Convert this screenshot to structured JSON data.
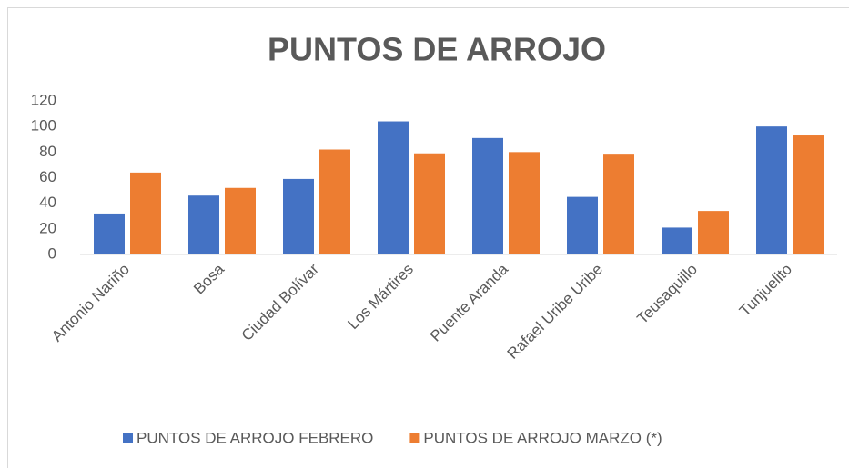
{
  "chart_data": {
    "type": "bar",
    "title": "PUNTOS DE ARROJO",
    "categories": [
      "Antonio Nariño",
      "Bosa",
      "Ciudad Bolívar",
      "Los Mártires",
      "Puente Aranda",
      "Rafael Uribe Uribe",
      "Teusaquillo",
      "Tunjuelito"
    ],
    "series": [
      {
        "name": "PUNTOS DE ARROJO FEBRERO",
        "color": "#4472c4",
        "values": [
          32,
          46,
          59,
          104,
          91,
          45,
          21,
          100
        ]
      },
      {
        "name": "PUNTOS DE ARROJO MARZO (*)",
        "color": "#ed7d31",
        "values": [
          64,
          52,
          82,
          79,
          80,
          78,
          34,
          93
        ]
      }
    ],
    "ylim": [
      0,
      120
    ],
    "yticks": [
      0,
      20,
      40,
      60,
      80,
      100,
      120
    ],
    "grid": false,
    "legend": "bottom"
  }
}
